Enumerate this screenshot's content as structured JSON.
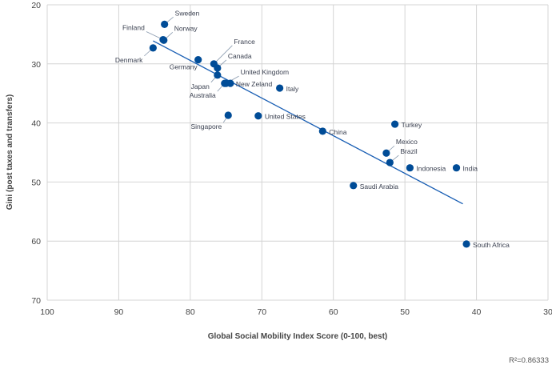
{
  "chart_data": {
    "type": "scatter",
    "title": "",
    "xlabel": "Global Social Mobility Index Score (0-100, best)",
    "ylabel": "Gini (post taxes and transfers)",
    "xlim": [
      100,
      30
    ],
    "ylim": [
      20,
      70
    ],
    "x_reversed": true,
    "y_reversed": true,
    "grid": true,
    "xticks": [
      100,
      90,
      80,
      70,
      60,
      50,
      40,
      30
    ],
    "yticks": [
      20,
      30,
      40,
      50,
      60,
      70
    ],
    "annotation": "R²=0.86333",
    "color": "#004c97",
    "points": [
      {
        "label": "Sweden",
        "x": 83.6,
        "y": 23.3
      },
      {
        "label": "Finland",
        "x": 83.8,
        "y": 25.9
      },
      {
        "label": "Norway",
        "x": 83.7,
        "y": 26.0
      },
      {
        "label": "Denmark",
        "x": 85.2,
        "y": 27.3
      },
      {
        "label": "Germany",
        "x": 78.9,
        "y": 29.3
      },
      {
        "label": "France",
        "x": 76.7,
        "y": 30.0
      },
      {
        "label": "Canada",
        "x": 76.2,
        "y": 30.7
      },
      {
        "label": "United Kingdom",
        "x": 75.0,
        "y": 33.3
      },
      {
        "label": "Japan",
        "x": 76.2,
        "y": 31.9
      },
      {
        "label": "Australia",
        "x": 75.2,
        "y": 33.3
      },
      {
        "label": "New Zeland",
        "x": 74.4,
        "y": 33.3
      },
      {
        "label": "Italy",
        "x": 67.5,
        "y": 34.1
      },
      {
        "label": "Singapore",
        "x": 74.7,
        "y": 38.7
      },
      {
        "label": "United States",
        "x": 70.5,
        "y": 38.8
      },
      {
        "label": "China",
        "x": 61.5,
        "y": 41.4
      },
      {
        "label": "Turkey",
        "x": 51.4,
        "y": 40.2
      },
      {
        "label": "Mexico",
        "x": 52.6,
        "y": 45.1
      },
      {
        "label": "Brazil",
        "x": 52.1,
        "y": 46.7
      },
      {
        "label": "Indonesia",
        "x": 49.3,
        "y": 47.6
      },
      {
        "label": "India",
        "x": 42.8,
        "y": 47.6
      },
      {
        "label": "Saudi Arabia",
        "x": 57.2,
        "y": 50.6
      },
      {
        "label": "South Africa",
        "x": 41.4,
        "y": 60.5
      }
    ],
    "trendline": {
      "x": [
        85.2,
        41.9
      ],
      "y": [
        26.1,
        53.7
      ]
    }
  }
}
